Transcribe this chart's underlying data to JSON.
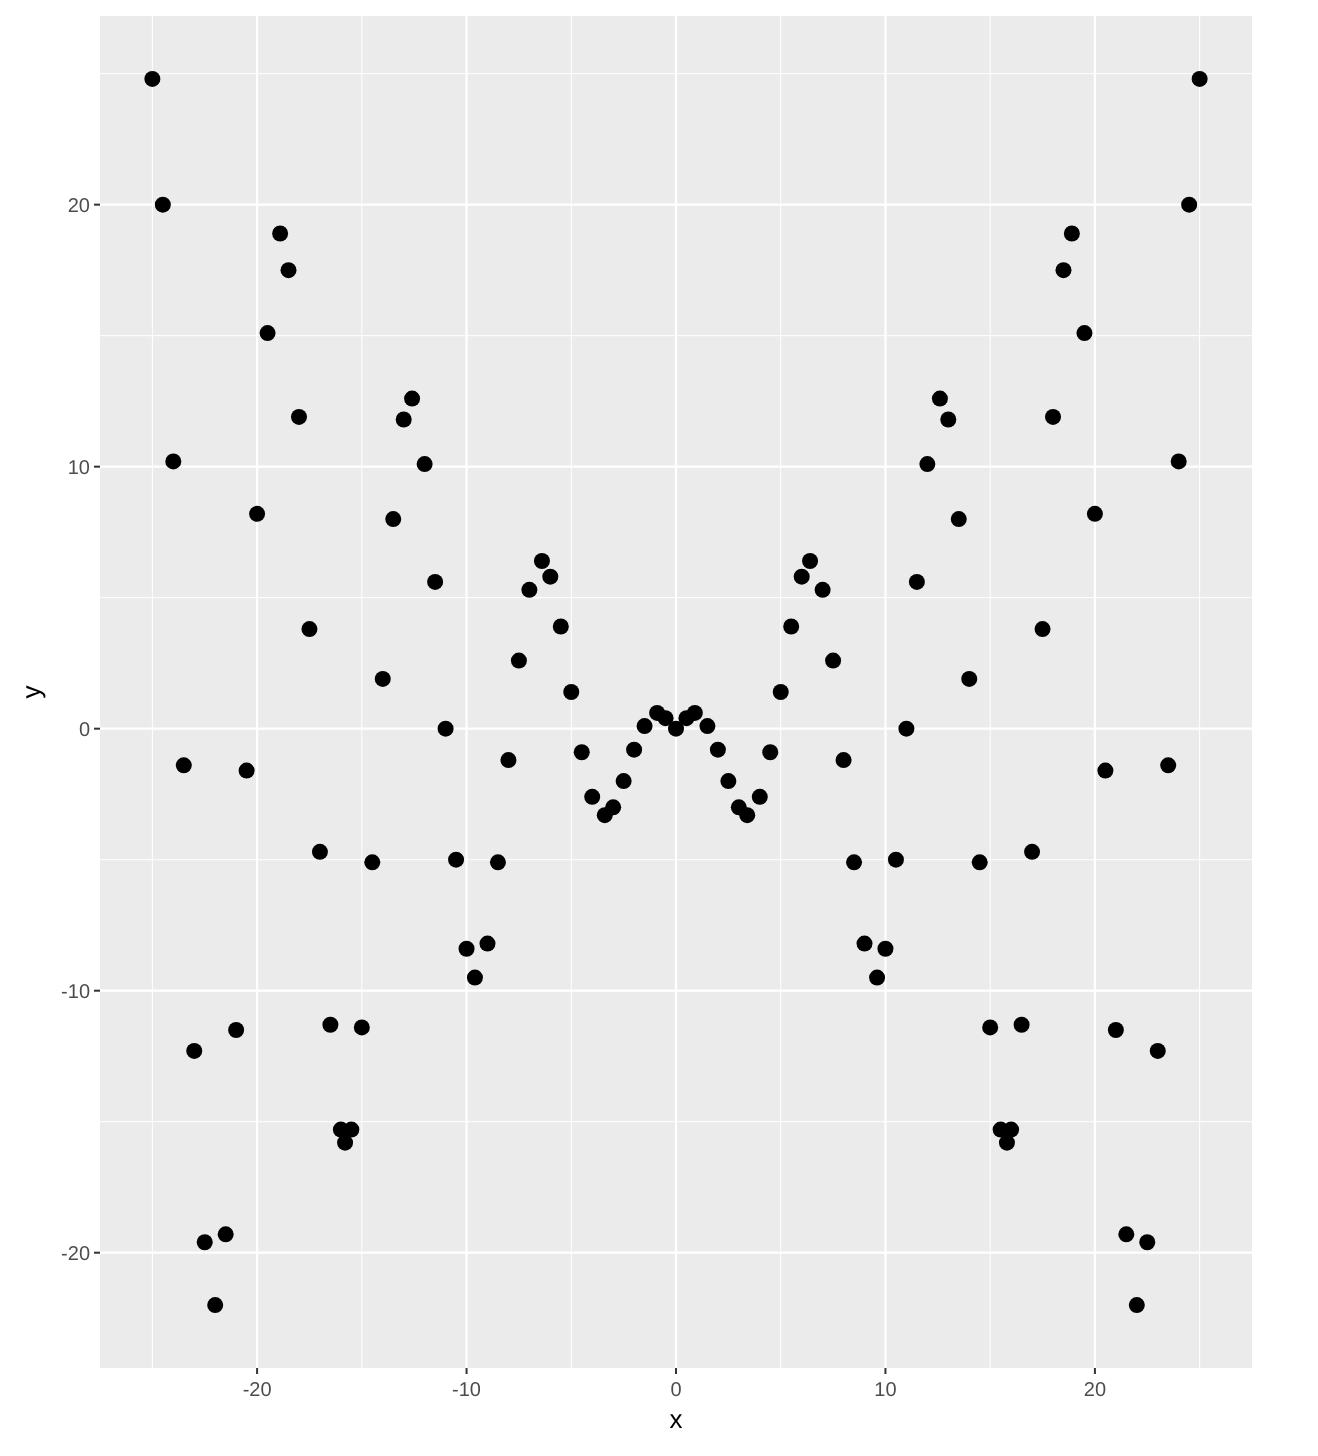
{
  "chart_data": {
    "type": "scatter",
    "xlabel": "x",
    "ylabel": "y",
    "x": [
      -25,
      -24.5,
      -24,
      -23.5,
      -23,
      -22.5,
      -22,
      -21.5,
      -21,
      -20.5,
      -20,
      -19.5,
      -18.9,
      -18.5,
      -18,
      -17.5,
      -17,
      -16.5,
      -16,
      -15.8,
      -15.5,
      -15,
      -14.5,
      -14,
      -13.5,
      -13,
      -12.6,
      -12,
      -11.5,
      -11,
      -10.5,
      -10,
      -9.6,
      -9,
      -8.5,
      -8,
      -7.5,
      -7,
      -6.4,
      -6,
      -5.5,
      -5,
      -4.5,
      -4,
      -3.4,
      -3,
      -2.5,
      -2,
      -1.5,
      -0.9,
      -0.5,
      0,
      0.5,
      0.9,
      1.5,
      2,
      2.5,
      3,
      3.4,
      4,
      4.5,
      5,
      5.5,
      6,
      6.4,
      7,
      7.5,
      8,
      8.5,
      9,
      9.6,
      10,
      10.5,
      11,
      11.5,
      12,
      12.6,
      13,
      13.5,
      14,
      14.5,
      15,
      15.5,
      15.8,
      16,
      16.5,
      17,
      17.5,
      18,
      18.5,
      18.9,
      19.5,
      20,
      20.5,
      21,
      21.5,
      22,
      22.5,
      23,
      23.5,
      24,
      24.5,
      25
    ],
    "series": [
      {
        "color": "#000000",
        "values": [
          24.8,
          20.0,
          10.2,
          -1.4,
          -12.3,
          -19.6,
          -22.0,
          -19.3,
          -11.5,
          -1.6,
          8.2,
          15.1,
          18.9,
          17.5,
          11.9,
          3.8,
          -4.7,
          -11.3,
          -15.3,
          -15.8,
          -15.3,
          -11.4,
          -5.1,
          1.9,
          8.0,
          11.8,
          12.6,
          10.1,
          5.6,
          0.0,
          -5.0,
          -8.4,
          -9.5,
          -8.2,
          -5.1,
          -1.2,
          2.6,
          5.3,
          6.4,
          5.8,
          3.9,
          1.4,
          -0.9,
          -2.6,
          -3.3,
          -3.0,
          -2.0,
          -0.8,
          0.1,
          0.6,
          0.4,
          0,
          0.4,
          0.6,
          0.1,
          -0.8,
          -2.0,
          -3.0,
          -3.3,
          -2.6,
          -0.9,
          1.4,
          3.9,
          5.8,
          6.4,
          5.3,
          2.6,
          -1.2,
          -5.1,
          -8.2,
          -9.5,
          -8.4,
          -5.0,
          0.0,
          5.6,
          10.1,
          12.6,
          11.8,
          8.0,
          1.9,
          -5.1,
          -11.4,
          -15.3,
          -15.8,
          -15.3,
          -11.3,
          -4.7,
          3.8,
          11.9,
          17.5,
          18.9,
          15.1,
          8.2,
          -1.6,
          -11.5,
          -19.3,
          -22.0,
          -19.6,
          -12.3,
          -1.4,
          10.2,
          20.0,
          24.8
        ]
      }
    ],
    "xlim": [
      -27.5,
      27.5
    ],
    "xticks": [
      -20,
      -10,
      0,
      10,
      20
    ],
    "ylim": [
      -24.4,
      27.2
    ],
    "yticks": [
      -20,
      -10,
      0,
      10,
      20
    ],
    "grid": true,
    "marker": "circle"
  }
}
